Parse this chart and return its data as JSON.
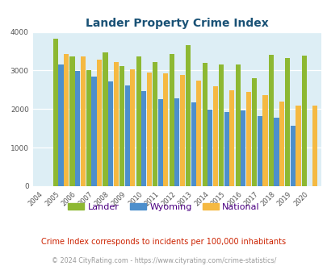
{
  "title": "Lander Property Crime Index",
  "title_color": "#1a5276",
  "years": [
    2004,
    2005,
    2006,
    2007,
    2008,
    2009,
    2010,
    2011,
    2012,
    2013,
    2014,
    2015,
    2016,
    2017,
    2018,
    2019,
    2020
  ],
  "lander": [
    0,
    3820,
    3360,
    3000,
    3470,
    3110,
    3360,
    3220,
    3430,
    3660,
    3200,
    3150,
    3150,
    2800,
    3400,
    3320,
    3380
  ],
  "wyoming": [
    0,
    3160,
    2990,
    2840,
    2710,
    2620,
    2460,
    2260,
    2270,
    2170,
    1980,
    1920,
    1970,
    1820,
    1770,
    1570,
    0
  ],
  "national": [
    0,
    3430,
    3360,
    3280,
    3220,
    3040,
    2950,
    2920,
    2880,
    2730,
    2590,
    2490,
    2440,
    2360,
    2200,
    2100,
    2090
  ],
  "lander_color": "#8db832",
  "wyoming_color": "#4d8fcc",
  "national_color": "#f5b942",
  "bg_color": "#ddeef5",
  "ylim": [
    0,
    4000
  ],
  "yticks": [
    0,
    1000,
    2000,
    3000,
    4000
  ],
  "note": "Crime Index corresponds to incidents per 100,000 inhabitants",
  "copyright": "© 2024 CityRating.com - https://www.cityrating.com/crime-statistics/",
  "note_color": "#cc2200",
  "copyright_color": "#999999",
  "legend_labels": [
    "Lander",
    "Wyoming",
    "National"
  ],
  "legend_text_color": "#4b0082"
}
